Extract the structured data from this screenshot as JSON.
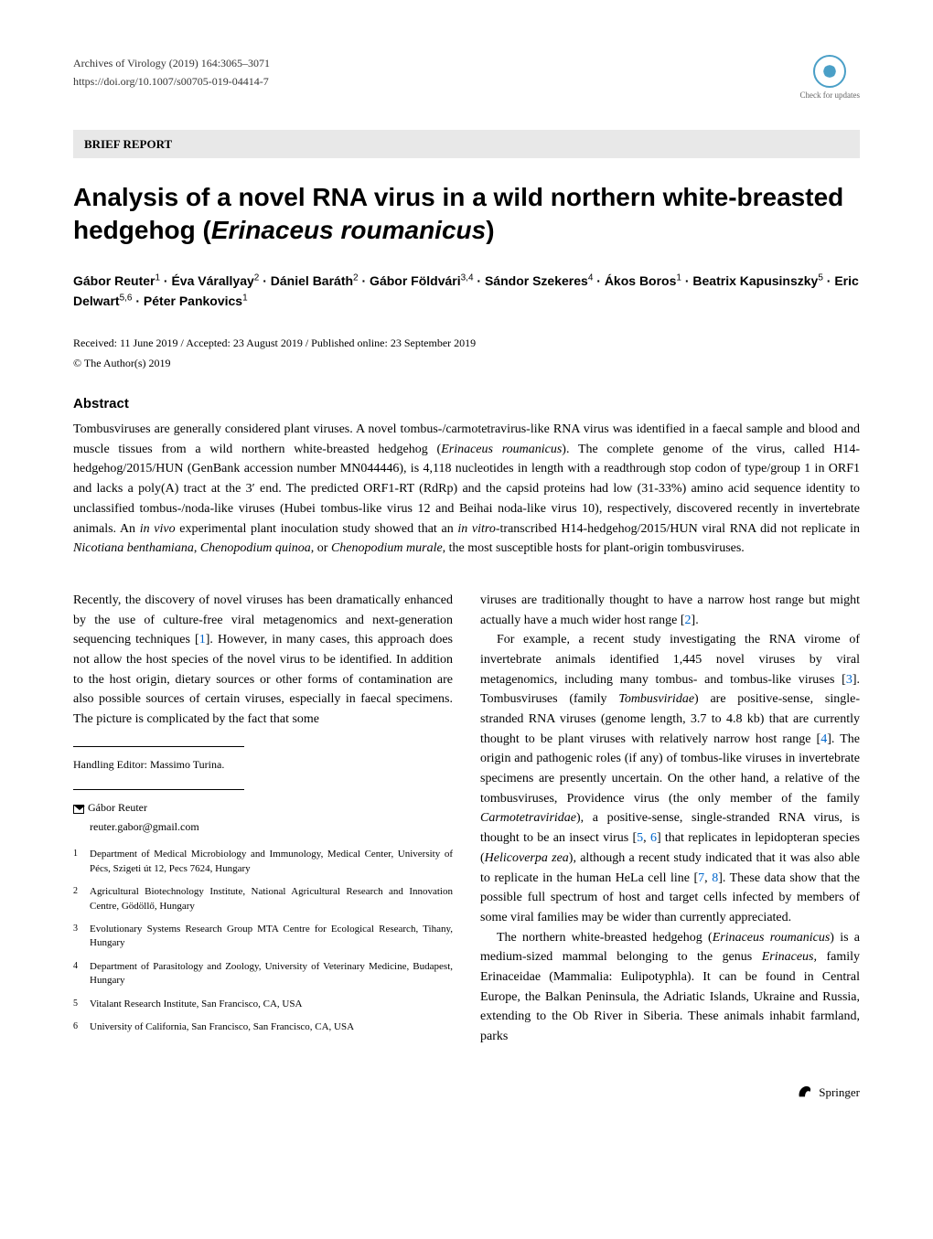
{
  "header": {
    "journal": "Archives of Virology (2019) 164:3065–3071",
    "doi": "https://doi.org/10.1007/s00705-019-04414-7",
    "check_updates": "Check for updates"
  },
  "section_label": "BRIEF REPORT",
  "title": "Analysis of a novel RNA virus in a wild northern white-breasted hedgehog (Erinaceus roumanicus)",
  "authors_html": "Gábor Reuter<sup>1</sup> · Éva Várallyay<sup>2</sup> · Dániel Baráth<sup>2</sup> · Gábor Földvári<sup>3,4</sup> · Sándor Szekeres<sup>4</sup> · Ákos Boros<sup>1</sup> · Beatrix Kapusinszky<sup>5</sup> · Eric Delwart<sup>5,6</sup> · Péter Pankovics<sup>1</sup>",
  "dates": "Received: 11 June 2019 / Accepted: 23 August 2019 / Published online: 23 September 2019",
  "copyright": "© The Author(s) 2019",
  "abstract": {
    "heading": "Abstract",
    "text_html": "Tombusviruses are generally considered plant viruses. A novel tombus-/carmotetravirus-like RNA virus was identified in a faecal sample and blood and muscle tissues from a wild northern white-breasted hedgehog (<em>Erinaceus roumanicus</em>). The complete genome of the virus, called H14-hedgehog/2015/HUN (GenBank accession number MN044446), is 4,118 nucleotides in length with a readthrough stop codon of type/group 1 in ORF1 and lacks a poly(A) tract at the 3′ end. The predicted ORF1-RT (RdRp) and the capsid proteins had low (31-33%) amino acid sequence identity to unclassified tombus-/noda-like viruses (Hubei tombus-like virus 12 and Beihai noda-like virus 10), respectively, discovered recently in invertebrate animals. An <em>in vivo</em> experimental plant inoculation study showed that an <em>in vitro</em>-transcribed H14-hedgehog/2015/HUN viral RNA did not replicate in <em>Nicotiana benthamiana</em>, <em>Chenopodium quinoa</em>, or <em>Chenopodium murale</em>, the most susceptible hosts for plant-origin tombusviruses."
  },
  "body": {
    "left_para1_html": "Recently, the discovery of novel viruses has been dramatically enhanced by the use of culture-free viral metagenomics and next-generation sequencing techniques [<span class=\"ref-link\">1</span>]. However, in many cases, this approach does not allow the host species of the novel virus to be identified. In addition to the host origin, dietary sources or other forms of contamination are also possible sources of certain viruses, especially in faecal specimens. The picture is complicated by the fact that some",
    "right_para1_html": "viruses are traditionally thought to have a narrow host range but might actually have a much wider host range [<span class=\"ref-link\">2</span>].",
    "right_para2_html": "For example, a recent study investigating the RNA virome of invertebrate animals identified 1,445 novel viruses by viral metagenomics, including many tombus- and tombus-like viruses [<span class=\"ref-link\">3</span>]. Tombusviruses (family <em>Tombusviridae</em>) are positive-sense, single-stranded RNA viruses (genome length, 3.7 to 4.8 kb) that are currently thought to be plant viruses with relatively narrow host range [<span class=\"ref-link\">4</span>]. The origin and pathogenic roles (if any) of tombus-like viruses in invertebrate specimens are presently uncertain. On the other hand, a relative of the tombusviruses, Providence virus (the only member of the family <em>Carmotetraviridae</em>), a positive-sense, single-stranded RNA virus, is thought to be an insect virus [<span class=\"ref-link\">5</span>, <span class=\"ref-link\">6</span>] that replicates in lepidopteran species (<em>Helicoverpa zea</em>), although a recent study indicated that it was also able to replicate in the human HeLa cell line [<span class=\"ref-link\">7</span>, <span class=\"ref-link\">8</span>]. These data show that the possible full spectrum of host and target cells infected by members of some viral families may be wider than currently appreciated.",
    "right_para3_html": "The northern white-breasted hedgehog (<em>Erinaceus roumanicus</em>) is a medium-sized mammal belonging to the genus <em>Erinaceus,</em> family Erinaceidae (Mammalia: Eulipotyphla). It can be found in Central Europe, the Balkan Peninsula, the Adriatic Islands, Ukraine and Russia, extending to the Ob River in Siberia. These animals inhabit farmland, parks"
  },
  "handling_editor": "Handling Editor: Massimo Turina.",
  "corresponding": {
    "name": "Gábor Reuter",
    "email": "reuter.gabor@gmail.com"
  },
  "affiliations": [
    {
      "num": "1",
      "text": "Department of Medical Microbiology and Immunology, Medical Center, University of Pécs, Szigeti út 12, Pecs 7624, Hungary"
    },
    {
      "num": "2",
      "text": "Agricultural Biotechnology Institute, National Agricultural Research and Innovation Centre, Gödöllő, Hungary"
    },
    {
      "num": "3",
      "text": "Evolutionary Systems Research Group MTA Centre for Ecological Research, Tihany, Hungary"
    },
    {
      "num": "4",
      "text": "Department of Parasitology and Zoology, University of Veterinary Medicine, Budapest, Hungary"
    },
    {
      "num": "5",
      "text": "Vitalant Research Institute, San Francisco, CA, USA"
    },
    {
      "num": "6",
      "text": "University of California, San Francisco, San Francisco, CA, USA"
    }
  ],
  "footer": {
    "publisher": "Springer"
  }
}
